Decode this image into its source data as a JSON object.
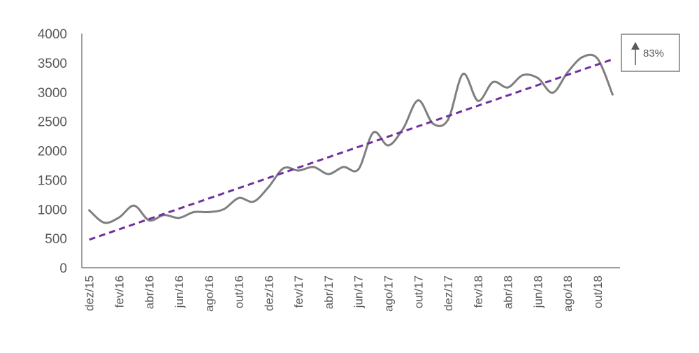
{
  "chart_data": {
    "type": "line",
    "title": "",
    "xlabel": "",
    "ylabel": "",
    "ylim": [
      0,
      4000
    ],
    "yticks": [
      0,
      500,
      1000,
      1500,
      2000,
      2500,
      3000,
      3500,
      4000
    ],
    "x_tick_labels": [
      "dez/15",
      "fev/16",
      "abr/16",
      "jun/16",
      "ago/16",
      "out/16",
      "dez/16",
      "fev/17",
      "abr/17",
      "jun/17",
      "ago/17",
      "out/17",
      "dez/17",
      "fev/18",
      "abr/18",
      "jun/18",
      "ago/18",
      "out/18"
    ],
    "grid": false,
    "legend": "none",
    "categories": [
      "dez/15",
      "jan/16",
      "fev/16",
      "mar/16",
      "abr/16",
      "mai/16",
      "jun/16",
      "jul/16",
      "ago/16",
      "set/16",
      "out/16",
      "nov/16",
      "dez/16",
      "jan/17",
      "fev/17",
      "mar/17",
      "abr/17",
      "mai/17",
      "jun/17",
      "jul/17",
      "ago/17",
      "set/17",
      "out/17",
      "nov/17",
      "dez/17",
      "jan/18",
      "fev/18",
      "mar/18",
      "abr/18",
      "mai/18",
      "jun/18",
      "jul/18",
      "ago/18",
      "set/18",
      "out/18",
      "nov/18"
    ],
    "series": [
      {
        "values": [
          980,
          770,
          860,
          1060,
          810,
          900,
          850,
          950,
          950,
          1000,
          1190,
          1130,
          1380,
          1700,
          1660,
          1720,
          1600,
          1720,
          1680,
          2310,
          2090,
          2380,
          2860,
          2460,
          2530,
          3310,
          2850,
          3170,
          3080,
          3290,
          3240,
          2990,
          3340,
          3600,
          3570,
          2960
        ],
        "color": "#7f7f7f",
        "style": "solid"
      },
      {
        "type": "trendline",
        "start": 480,
        "end": 3560,
        "color": "#7030a0",
        "style": "dashed"
      }
    ],
    "annotations": [
      {
        "text": "83%",
        "icon": "up-arrow-icon"
      }
    ]
  }
}
